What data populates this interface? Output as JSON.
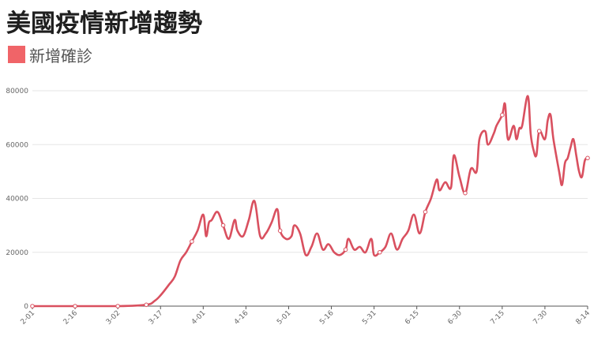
{
  "title": "美國疫情新增趨勢",
  "legend": {
    "label": "新增確診",
    "color": "#f06468"
  },
  "chart_data": {
    "type": "line",
    "title": "美國疫情新增趨勢",
    "xlabel": "",
    "ylabel": "",
    "ylim": [
      0,
      80000
    ],
    "y_ticks": [
      0,
      20000,
      40000,
      60000,
      80000
    ],
    "x_tick_labels": [
      "2-01",
      "2-16",
      "3-02",
      "3-17",
      "4-01",
      "4-16",
      "5-01",
      "5-16",
      "5-31",
      "6-15",
      "6-30",
      "7-15",
      "7-30",
      "8-14"
    ],
    "grid": "horizontal",
    "legend_position": "top-left",
    "line_color": "#d9505f",
    "series": [
      {
        "name": "新增確診",
        "x_day_offsets": [
          0,
          15,
          30,
          40,
          43,
          45,
          48,
          50,
          52,
          54,
          56,
          58,
          60,
          61,
          62,
          63,
          65,
          67,
          69,
          71,
          72,
          74,
          76,
          78,
          80,
          82,
          84,
          86,
          87,
          89,
          91,
          92,
          94,
          96,
          98,
          100,
          102,
          104,
          106,
          108,
          110,
          111,
          113,
          115,
          117,
          119,
          120,
          122,
          124,
          126,
          128,
          130,
          132,
          134,
          136,
          138,
          140,
          142,
          143,
          145,
          147,
          148,
          150,
          152,
          154,
          156,
          157,
          159,
          160,
          162,
          163,
          165,
          166,
          167,
          169,
          170,
          171,
          172,
          174,
          175,
          176,
          177,
          178,
          180,
          181,
          182,
          183,
          185,
          186,
          187,
          188,
          189,
          190,
          191,
          192,
          193,
          194,
          195
        ],
        "values": [
          0,
          0,
          0,
          500,
          2000,
          4000,
          8000,
          11000,
          17000,
          20000,
          24000,
          28000,
          34000,
          26000,
          31000,
          32000,
          35000,
          30000,
          25000,
          32000,
          28000,
          26000,
          32000,
          39000,
          26000,
          27000,
          31000,
          36000,
          28000,
          25000,
          26000,
          30000,
          27000,
          19000,
          22000,
          27000,
          21000,
          23000,
          20000,
          19000,
          21000,
          25000,
          21000,
          22000,
          20000,
          25000,
          19000,
          20000,
          22000,
          27000,
          21000,
          25000,
          28000,
          34000,
          27000,
          35000,
          40000,
          47000,
          43000,
          46000,
          44000,
          56000,
          48000,
          42000,
          51000,
          50000,
          62000,
          65000,
          60000,
          64000,
          67000,
          71000,
          75000,
          62000,
          67000,
          62000,
          66000,
          67000,
          78000,
          64000,
          58000,
          56000,
          65000,
          62000,
          69000,
          71000,
          62000,
          50000,
          45000,
          53000,
          55000,
          59000,
          62000,
          56000,
          50000,
          48000,
          54000,
          55000
        ],
        "marker_indices": [
          0,
          1,
          2,
          3,
          10,
          17,
          28,
          40,
          47,
          55,
          63,
          71,
          82,
          97
        ]
      }
    ]
  }
}
